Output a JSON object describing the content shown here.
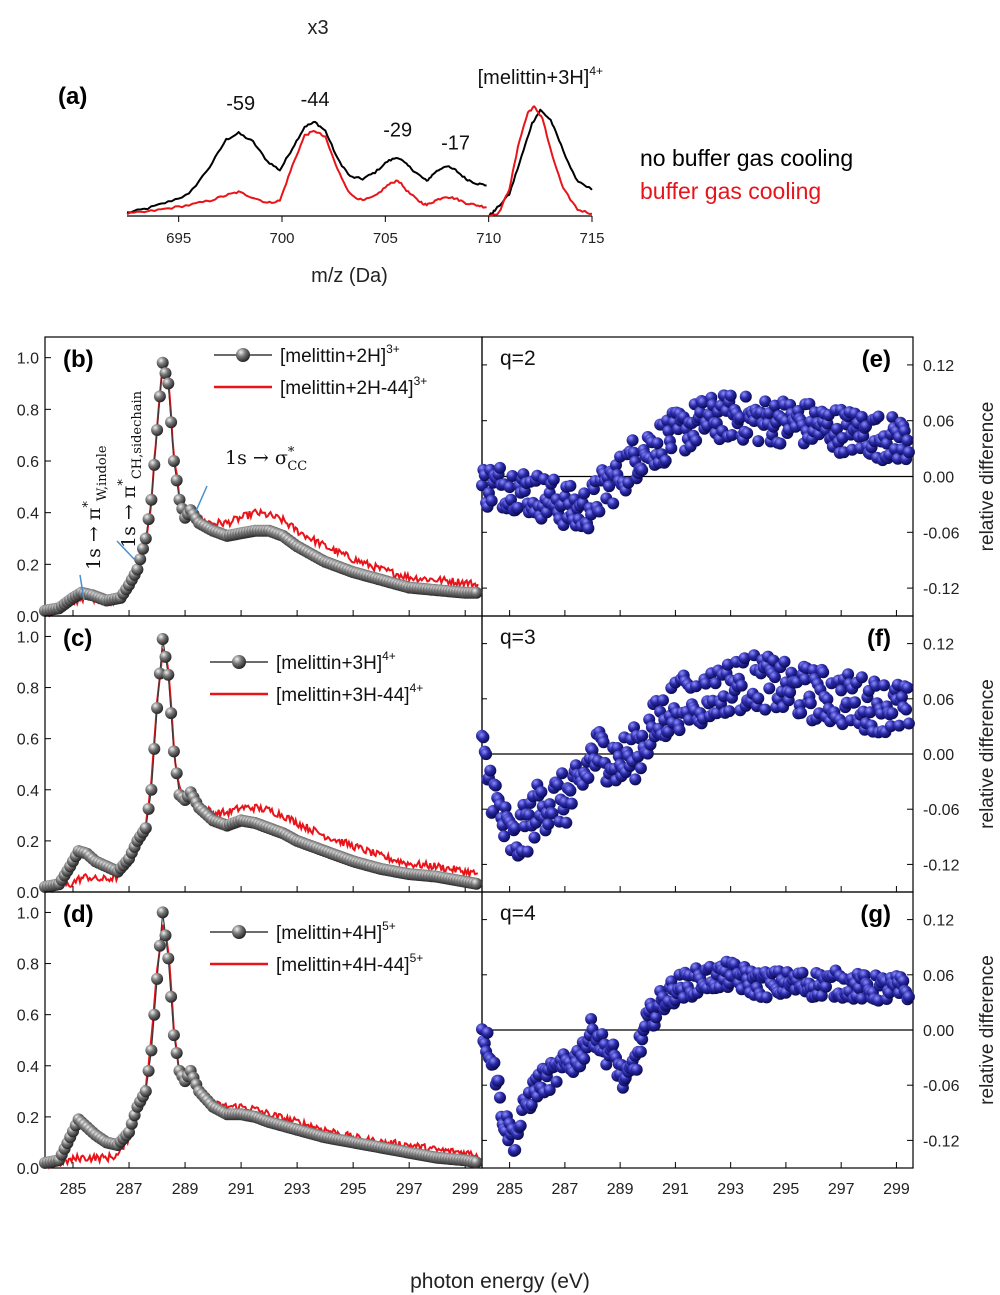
{
  "figure": {
    "xlabel": "photon energy (eV)"
  },
  "chart_data": [
    {
      "id": "a",
      "type": "line",
      "panel_label": "(a)",
      "xlabel": "m/z (Da)",
      "xlim": [
        692.5,
        715
      ],
      "ylim": [
        0,
        1.1
      ],
      "xticks": [
        695,
        700,
        705,
        710,
        715
      ],
      "break_at": 710,
      "x3_label": "x3",
      "peak_labels": [
        {
          "text": "-59",
          "x": 698.0,
          "y": 0.86
        },
        {
          "text": "-44",
          "x": 701.6,
          "y": 0.9
        },
        {
          "text": "-29",
          "x": 705.6,
          "y": 0.62
        },
        {
          "text": "-17",
          "x": 708.4,
          "y": 0.5
        },
        {
          "text": "[melittin+3H]",
          "sup": "4+",
          "x": 712.5,
          "y": 1.1
        }
      ],
      "legend": [
        {
          "name": "no buffer gas cooling",
          "color": "#000000"
        },
        {
          "name": "buffer gas cooling",
          "color": "#e8141a"
        }
      ],
      "series": [
        {
          "name": "no buffer gas cooling",
          "color": "#000000",
          "x": [
            692.5,
            693.5,
            694.5,
            695.5,
            696.5,
            697.3,
            697.9,
            698.6,
            699.3,
            699.9,
            700.5,
            701.1,
            701.6,
            702.1,
            702.7,
            703.3,
            703.9,
            704.5,
            705.1,
            705.6,
            706.1,
            706.6,
            707.0,
            707.4,
            707.9,
            708.4,
            708.9,
            709.4,
            709.9,
            710.0,
            710.3,
            711.0,
            711.6,
            712.1,
            712.5,
            713.0,
            713.5,
            714.2,
            715.0
          ],
          "y": [
            0.03,
            0.07,
            0.13,
            0.2,
            0.45,
            0.7,
            0.76,
            0.68,
            0.5,
            0.42,
            0.62,
            0.82,
            0.86,
            0.78,
            0.52,
            0.36,
            0.34,
            0.4,
            0.5,
            0.54,
            0.46,
            0.38,
            0.32,
            0.4,
            0.46,
            0.42,
            0.34,
            0.3,
            0.28,
            0.0,
            0.05,
            0.2,
            0.55,
            0.85,
            0.97,
            0.88,
            0.65,
            0.34,
            0.24
          ]
        },
        {
          "name": "buffer gas cooling",
          "color": "#e8141a",
          "x": [
            692.5,
            693.5,
            694.5,
            695.5,
            696.5,
            697.3,
            697.9,
            698.6,
            699.3,
            699.9,
            700.5,
            701.1,
            701.6,
            702.1,
            702.7,
            703.3,
            703.9,
            704.5,
            705.1,
            705.6,
            706.1,
            706.6,
            707.0,
            707.4,
            707.9,
            708.4,
            708.9,
            709.4,
            709.9,
            710.0,
            710.5,
            711.0,
            711.5,
            711.9,
            712.2,
            712.6,
            713.0,
            713.6,
            714.3,
            715.0
          ],
          "y": [
            0.02,
            0.04,
            0.07,
            0.1,
            0.14,
            0.19,
            0.22,
            0.17,
            0.12,
            0.14,
            0.46,
            0.74,
            0.78,
            0.72,
            0.42,
            0.2,
            0.14,
            0.18,
            0.28,
            0.33,
            0.22,
            0.14,
            0.1,
            0.14,
            0.18,
            0.16,
            0.12,
            0.1,
            0.08,
            0.0,
            0.03,
            0.25,
            0.7,
            0.95,
            1.0,
            0.9,
            0.6,
            0.25,
            0.06,
            0.02
          ]
        }
      ]
    },
    {
      "id": "b",
      "type": "line",
      "panel_label": "(b)",
      "xlim": [
        284.0,
        299.6
      ],
      "ylim": [
        0,
        1.08
      ],
      "yticks": [
        0.0,
        0.2,
        0.4,
        0.6,
        0.8,
        1.0
      ],
      "annotations": [
        "1s → π*W,indole",
        "1s → π*CH,sidechain",
        "1s → σ*CC"
      ],
      "series": [
        {
          "name": "[melittin+2H]",
          "sup": "3+",
          "color": "#3a3a3a",
          "marker": "sphere",
          "x": [
            284.0,
            284.5,
            285.0,
            285.3,
            285.7,
            286.2,
            286.7,
            287.0,
            287.3,
            287.6,
            287.8,
            288.0,
            288.2,
            288.4,
            288.6,
            288.8,
            289.0,
            289.2,
            289.5,
            290.0,
            290.5,
            291.0,
            291.5,
            292.0,
            292.5,
            293.0,
            293.5,
            294.0,
            295.0,
            296.0,
            297.0,
            298.0,
            299.0,
            299.5
          ],
          "y": [
            0.02,
            0.03,
            0.07,
            0.09,
            0.08,
            0.06,
            0.07,
            0.12,
            0.18,
            0.3,
            0.45,
            0.72,
            0.98,
            0.9,
            0.6,
            0.45,
            0.38,
            0.41,
            0.36,
            0.33,
            0.31,
            0.32,
            0.33,
            0.33,
            0.31,
            0.27,
            0.24,
            0.21,
            0.17,
            0.14,
            0.11,
            0.1,
            0.09,
            0.09
          ]
        },
        {
          "name": "[melittin+2H-44]",
          "sup": "3+",
          "color": "#e8141a",
          "x": [
            284.0,
            284.5,
            285.0,
            285.3,
            285.7,
            286.2,
            286.7,
            287.0,
            287.3,
            287.6,
            287.8,
            288.0,
            288.2,
            288.4,
            288.6,
            288.8,
            289.0,
            289.2,
            289.5,
            290.0,
            290.5,
            291.0,
            291.5,
            292.0,
            292.5,
            293.0,
            293.5,
            294.0,
            295.0,
            296.0,
            297.0,
            298.0,
            299.0,
            299.5
          ],
          "y": [
            0.01,
            0.02,
            0.05,
            0.07,
            0.07,
            0.06,
            0.07,
            0.11,
            0.17,
            0.28,
            0.45,
            0.74,
            0.96,
            0.92,
            0.62,
            0.46,
            0.4,
            0.4,
            0.37,
            0.36,
            0.36,
            0.38,
            0.4,
            0.39,
            0.37,
            0.33,
            0.3,
            0.27,
            0.22,
            0.18,
            0.15,
            0.14,
            0.13,
            0.12
          ]
        }
      ],
      "diff_panel": {
        "panel_label": "(e)",
        "q_label": "q=2",
        "ylim": [
          -0.15,
          0.15
        ],
        "yticks": [
          -0.12,
          -0.06,
          0.0,
          0.06,
          0.12
        ],
        "ylabel": "relative difference",
        "series": {
          "name": "relative difference",
          "color": "#1a1a8c",
          "x": [
            284.0,
            285.0,
            286.0,
            287.0,
            287.5,
            288.0,
            288.5,
            289.0,
            289.5,
            290.0,
            291.0,
            292.0,
            293.0,
            294.0,
            295.0,
            296.0,
            297.0,
            298.0,
            299.0,
            299.5
          ],
          "y": [
            -0.01,
            -0.01,
            -0.02,
            -0.03,
            -0.04,
            -0.03,
            -0.01,
            0.0,
            0.02,
            0.03,
            0.045,
            0.06,
            0.065,
            0.06,
            0.06,
            0.055,
            0.05,
            0.045,
            0.04,
            0.04
          ],
          "spread": 0.025
        }
      }
    },
    {
      "id": "c",
      "type": "line",
      "panel_label": "(c)",
      "xlim": [
        284.0,
        299.6
      ],
      "ylim": [
        0,
        1.08
      ],
      "yticks": [
        0.0,
        0.2,
        0.4,
        0.6,
        0.8,
        1.0
      ],
      "series": [
        {
          "name": "[melittin+3H]",
          "sup": "4+",
          "color": "#3a3a3a",
          "marker": "sphere",
          "x": [
            284.0,
            284.5,
            284.9,
            285.2,
            285.5,
            285.8,
            286.2,
            286.6,
            287.0,
            287.3,
            287.6,
            287.8,
            288.0,
            288.2,
            288.4,
            288.6,
            288.8,
            289.0,
            289.2,
            289.5,
            290.0,
            290.5,
            291.0,
            291.5,
            292.0,
            292.5,
            293.0,
            294.0,
            295.0,
            296.0,
            297.0,
            298.0,
            299.0,
            299.5
          ],
          "y": [
            0.02,
            0.03,
            0.1,
            0.16,
            0.15,
            0.12,
            0.1,
            0.08,
            0.13,
            0.2,
            0.25,
            0.4,
            0.72,
            0.99,
            0.85,
            0.55,
            0.38,
            0.36,
            0.39,
            0.33,
            0.28,
            0.26,
            0.28,
            0.27,
            0.25,
            0.23,
            0.2,
            0.16,
            0.12,
            0.09,
            0.07,
            0.06,
            0.04,
            0.03
          ]
        },
        {
          "name": "[melittin+3H-44]",
          "sup": "4+",
          "color": "#e8141a",
          "x": [
            284.0,
            284.5,
            284.9,
            285.2,
            285.5,
            285.8,
            286.2,
            286.6,
            287.0,
            287.3,
            287.6,
            287.8,
            288.0,
            288.2,
            288.4,
            288.6,
            288.8,
            289.0,
            289.2,
            289.5,
            290.0,
            290.5,
            291.0,
            291.5,
            292.0,
            292.5,
            293.0,
            294.0,
            295.0,
            296.0,
            297.0,
            298.0,
            299.0,
            299.5
          ],
          "y": [
            0.01,
            0.02,
            0.03,
            0.05,
            0.06,
            0.05,
            0.05,
            0.06,
            0.12,
            0.22,
            0.27,
            0.42,
            0.76,
            0.95,
            0.88,
            0.56,
            0.4,
            0.37,
            0.39,
            0.34,
            0.31,
            0.31,
            0.33,
            0.33,
            0.32,
            0.3,
            0.27,
            0.22,
            0.18,
            0.14,
            0.11,
            0.1,
            0.08,
            0.07
          ]
        }
      ],
      "diff_panel": {
        "panel_label": "(f)",
        "q_label": "q=3",
        "ylim": [
          -0.15,
          0.15
        ],
        "yticks": [
          -0.12,
          -0.06,
          0.0,
          0.06,
          0.12
        ],
        "ylabel": "relative difference",
        "series": {
          "name": "relative difference",
          "color": "#1a1a8c",
          "x": [
            284.0,
            284.4,
            284.8,
            285.2,
            285.6,
            286.0,
            286.5,
            287.0,
            287.5,
            288.0,
            288.5,
            289.0,
            289.5,
            290.0,
            291.0,
            292.0,
            293.0,
            294.0,
            295.0,
            296.0,
            297.0,
            298.0,
            299.0,
            299.5
          ],
          "y": [
            0.0,
            -0.04,
            -0.08,
            -0.1,
            -0.08,
            -0.06,
            -0.05,
            -0.05,
            -0.04,
            0.0,
            0.0,
            -0.01,
            0.0,
            0.02,
            0.055,
            0.06,
            0.075,
            0.08,
            0.07,
            0.065,
            0.06,
            0.055,
            0.05,
            0.045
          ],
          "spread": 0.03
        }
      }
    },
    {
      "id": "d",
      "type": "line",
      "panel_label": "(d)",
      "xlim": [
        284.0,
        299.6
      ],
      "ylim": [
        0,
        1.08
      ],
      "yticks": [
        0.0,
        0.2,
        0.4,
        0.6,
        0.8,
        1.0
      ],
      "xticks": [
        285,
        287,
        289,
        291,
        293,
        295,
        297,
        299
      ],
      "series": [
        {
          "name": "[melittin+4H]",
          "sup": "5+",
          "color": "#3a3a3a",
          "marker": "sphere",
          "x": [
            284.0,
            284.5,
            284.9,
            285.2,
            285.5,
            285.8,
            286.2,
            286.6,
            287.0,
            287.3,
            287.6,
            287.8,
            288.0,
            288.2,
            288.4,
            288.6,
            288.8,
            289.0,
            289.2,
            289.5,
            290.0,
            290.5,
            291.0,
            291.5,
            292.0,
            293.0,
            294.0,
            295.0,
            296.0,
            297.0,
            298.0,
            299.0,
            299.5
          ],
          "y": [
            0.02,
            0.03,
            0.12,
            0.19,
            0.16,
            0.13,
            0.1,
            0.09,
            0.14,
            0.24,
            0.3,
            0.46,
            0.74,
            1.0,
            0.82,
            0.52,
            0.38,
            0.34,
            0.38,
            0.3,
            0.24,
            0.21,
            0.21,
            0.2,
            0.18,
            0.15,
            0.12,
            0.1,
            0.08,
            0.06,
            0.04,
            0.03,
            0.02
          ]
        },
        {
          "name": "[melittin+4H-44]",
          "sup": "5+",
          "color": "#e8141a",
          "x": [
            284.0,
            284.5,
            284.9,
            285.2,
            285.5,
            285.8,
            286.2,
            286.6,
            287.0,
            287.3,
            287.6,
            287.8,
            288.0,
            288.2,
            288.4,
            288.6,
            288.8,
            289.0,
            289.2,
            289.5,
            290.0,
            290.5,
            291.0,
            291.5,
            292.0,
            293.0,
            294.0,
            295.0,
            296.0,
            297.0,
            298.0,
            299.0,
            299.5
          ],
          "y": [
            0.01,
            0.02,
            0.03,
            0.04,
            0.04,
            0.04,
            0.04,
            0.05,
            0.12,
            0.24,
            0.32,
            0.5,
            0.78,
            0.96,
            0.86,
            0.55,
            0.37,
            0.35,
            0.36,
            0.3,
            0.25,
            0.24,
            0.24,
            0.23,
            0.21,
            0.18,
            0.15,
            0.12,
            0.1,
            0.09,
            0.07,
            0.06,
            0.05
          ]
        }
      ],
      "diff_panel": {
        "panel_label": "(g)",
        "q_label": "q=4",
        "ylim": [
          -0.15,
          0.15
        ],
        "yticks": [
          -0.12,
          -0.06,
          0.0,
          0.06,
          0.12
        ],
        "ylabel": "relative difference",
        "xticks": [
          285,
          287,
          289,
          291,
          293,
          295,
          297,
          299
        ],
        "series": {
          "name": "relative difference",
          "color": "#1a1a8c",
          "x": [
            284.0,
            284.4,
            284.8,
            285.2,
            285.6,
            286.0,
            286.5,
            287.0,
            287.5,
            288.0,
            288.4,
            288.8,
            289.2,
            289.6,
            290.0,
            290.5,
            291.0,
            291.5,
            292.0,
            293.0,
            294.0,
            295.0,
            296.0,
            297.0,
            298.0,
            299.0,
            299.5
          ],
          "y": [
            0.0,
            -0.03,
            -0.1,
            -0.12,
            -0.08,
            -0.06,
            -0.05,
            -0.04,
            -0.03,
            0.0,
            -0.02,
            -0.03,
            -0.06,
            -0.03,
            0.01,
            0.03,
            0.045,
            0.05,
            0.055,
            0.06,
            0.05,
            0.05,
            0.05,
            0.05,
            0.045,
            0.045,
            0.04
          ],
          "spread": 0.015
        }
      }
    }
  ]
}
